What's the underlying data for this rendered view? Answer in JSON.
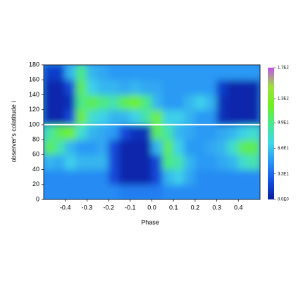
{
  "chart_data": {
    "type": "heatmap",
    "xlabel": "Phase",
    "ylabel": "observer's colatitude i",
    "xlim": [
      -0.5,
      0.5
    ],
    "ylim": [
      0,
      180
    ],
    "xticks": [
      -0.4,
      -0.3,
      -0.2,
      -0.1,
      {
        "value": 0,
        "label": "0.0"
      },
      0.1,
      0.2,
      0.3,
      0.4
    ],
    "yticks": [
      0,
      20,
      40,
      60,
      80,
      100,
      120,
      140,
      160,
      180
    ],
    "clim": [
      0,
      170
    ],
    "cticks": [
      {
        "value": 0,
        "label": "0.0E0"
      },
      {
        "value": 33,
        "label": "3.3E1"
      },
      {
        "value": 66,
        "label": "6.6E1"
      },
      {
        "value": 99,
        "label": "9.9E1"
      },
      {
        "value": 130,
        "label": "1.3E2"
      },
      {
        "value": 170,
        "label": "1.7E2"
      }
    ],
    "colormap": [
      "#0a1e9c",
      "#1450e6",
      "#2a96f5",
      "#40d8e8",
      "#48e890",
      "#70f020",
      "#a0e040",
      "#c050f0"
    ],
    "hline": 100,
    "hline_color": "#ffffff",
    "z": [
      [
        45,
        45,
        45,
        45,
        45,
        45,
        45,
        40,
        40,
        40,
        40,
        45,
        45,
        45,
        45,
        45,
        45,
        45,
        45,
        45
      ],
      [
        45,
        45,
        45,
        45,
        45,
        45,
        20,
        5,
        5,
        5,
        20,
        60,
        70,
        55,
        45,
        45,
        45,
        45,
        45,
        45
      ],
      [
        60,
        55,
        70,
        60,
        60,
        60,
        20,
        5,
        5,
        5,
        20,
        100,
        90,
        60,
        50,
        50,
        55,
        60,
        80,
        90
      ],
      [
        110,
        90,
        60,
        50,
        50,
        55,
        20,
        5,
        5,
        5,
        60,
        110,
        70,
        50,
        50,
        55,
        60,
        80,
        110,
        110
      ],
      [
        90,
        110,
        120,
        80,
        60,
        55,
        50,
        20,
        10,
        10,
        110,
        90,
        60,
        55,
        50,
        50,
        55,
        60,
        70,
        80
      ],
      [
        5,
        5,
        20,
        120,
        80,
        70,
        60,
        60,
        70,
        90,
        120,
        70,
        70,
        60,
        50,
        50,
        10,
        5,
        5,
        5
      ],
      [
        5,
        5,
        10,
        100,
        110,
        100,
        90,
        110,
        120,
        100,
        60,
        50,
        50,
        60,
        70,
        60,
        10,
        5,
        5,
        5
      ],
      [
        5,
        5,
        20,
        110,
        70,
        60,
        60,
        55,
        60,
        55,
        55,
        50,
        50,
        50,
        50,
        50,
        15,
        5,
        5,
        5
      ],
      [
        15,
        15,
        60,
        100,
        60,
        55,
        50,
        50,
        50,
        50,
        50,
        50,
        50,
        50,
        50,
        50,
        50,
        50,
        50,
        50
      ]
    ]
  }
}
